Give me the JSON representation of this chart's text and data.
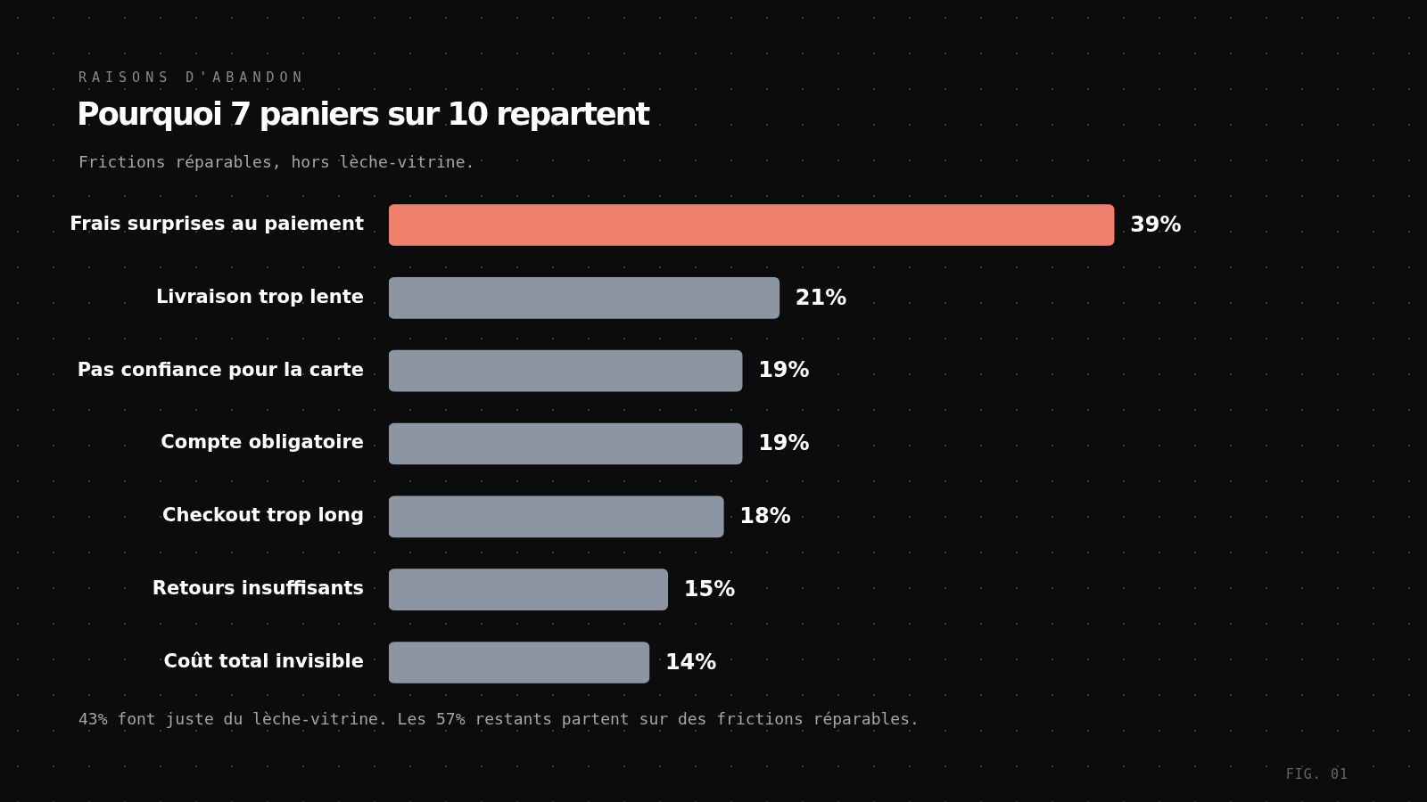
{
  "chart_data": {
    "type": "bar",
    "orientation": "horizontal",
    "title": "Pourquoi 7 paniers sur 10 repartent",
    "subtitle": "Frictions réparables, hors lèche-vitrine.",
    "categories": [
      "Frais surprises au paiement",
      "Livraison trop lente",
      "Pas confiance pour la carte",
      "Compte obligatoire",
      "Checkout trop long",
      "Retours insuffisants",
      "Coût total invisible"
    ],
    "values": [
      39,
      21,
      19,
      19,
      18,
      15,
      14
    ],
    "colors": [
      "#f07f6e",
      "#8c96a3",
      "#8c96a3",
      "#8c96a3",
      "#8c96a3",
      "#8c96a3",
      "#8c96a3"
    ],
    "value_labels": [
      "39%",
      "21%",
      "19%",
      "19%",
      "18%",
      "15%",
      "14%"
    ],
    "annotations": [
      "RAISONS D'ABANDON",
      "43% font juste du lèche-vitrine. Les 57% restants partent sur des frictions réparables.",
      "FIG. 01"
    ],
    "legend": false
  }
}
